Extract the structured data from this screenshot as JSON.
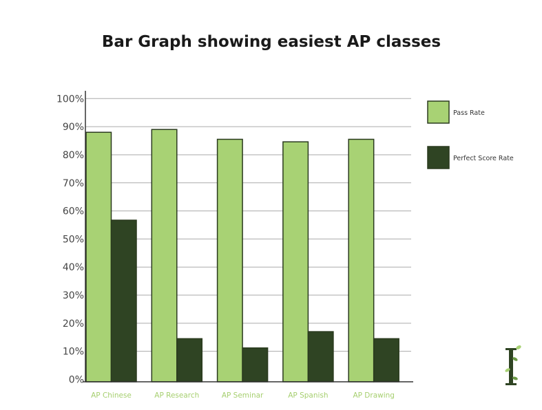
{
  "chart_data": {
    "type": "bar",
    "title": "Bar Graph showing easiest AP classes",
    "xlabel": "",
    "ylabel": "",
    "ylim": [
      0,
      100
    ],
    "yticks": [
      "0%",
      "10%",
      "20%",
      "30%",
      "40%",
      "50%",
      "60%",
      "70%",
      "80%",
      "90%",
      "100%"
    ],
    "grid": true,
    "legend_position": "right",
    "categories": [
      "AP Chinese",
      "AP Research",
      "AP Seminar",
      "AP Spanish",
      "AP Drawing"
    ],
    "series": [
      {
        "name": "Pass Rate",
        "color": "#a8d274",
        "values": [
          88,
          89,
          85.5,
          84.6,
          85.5
        ]
      },
      {
        "name": "Perfect Score Rate",
        "color": "#2f4423",
        "values": [
          56.7,
          14.5,
          11.2,
          17,
          14.5
        ]
      }
    ]
  },
  "colors": {
    "bar_stroke": "#2a3a1e",
    "grid": "#aaaaaa",
    "axis": "#333333"
  }
}
